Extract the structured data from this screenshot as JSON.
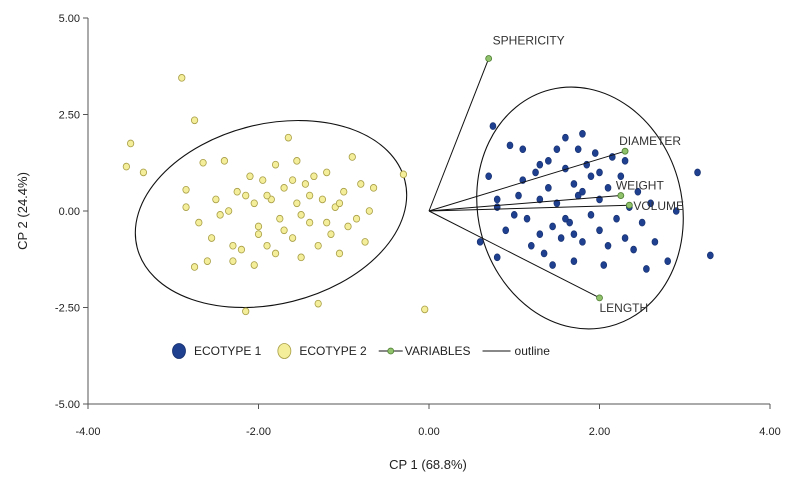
{
  "chart_data": {
    "type": "scatter",
    "title": "",
    "xlabel": "CP 1 (68.8%)",
    "ylabel": "CP 2 (24.4%)",
    "xlim": [
      -4.0,
      4.0
    ],
    "ylim": [
      -5.0,
      5.0
    ],
    "x_ticks": [
      "-4.00",
      "-2.00",
      "0.00",
      "2.00",
      "4.00"
    ],
    "y_ticks": [
      "5.00",
      "2.50",
      "0.00",
      "-2.50",
      "-5.00"
    ],
    "grid": false,
    "legend_position": "bottom-left",
    "colors": {
      "ecotype1_fill": "#1f3f8f",
      "ecotype1_stroke": "#16306e",
      "ecotype2_fill": "#f4ee9a",
      "ecotype2_stroke": "#a89e45",
      "variable_fill": "#8fc26a",
      "variable_stroke": "#4e7d32",
      "line": "#111111"
    },
    "series": [
      {
        "name": "ECOTYPE 1",
        "points": [
          [
            0.6,
            -0.8
          ],
          [
            0.7,
            0.9
          ],
          [
            0.8,
            -1.2
          ],
          [
            0.8,
            0.3
          ],
          [
            0.8,
            0.1
          ],
          [
            0.75,
            2.2
          ],
          [
            0.9,
            -0.5
          ],
          [
            0.95,
            1.7
          ],
          [
            1.0,
            -0.1
          ],
          [
            1.05,
            0.4
          ],
          [
            1.1,
            1.6
          ],
          [
            1.1,
            0.8
          ],
          [
            1.15,
            -0.2
          ],
          [
            1.2,
            -0.9
          ],
          [
            1.25,
            1.0
          ],
          [
            1.3,
            0.3
          ],
          [
            1.3,
            -0.6
          ],
          [
            1.35,
            -1.1
          ],
          [
            1.4,
            1.3
          ],
          [
            1.4,
            0.6
          ],
          [
            1.45,
            -0.4
          ],
          [
            1.5,
            1.6
          ],
          [
            1.5,
            0.2
          ],
          [
            1.55,
            -0.7
          ],
          [
            1.6,
            1.9
          ],
          [
            1.6,
            1.1
          ],
          [
            1.65,
            -0.3
          ],
          [
            1.7,
            0.7
          ],
          [
            1.7,
            -1.3
          ],
          [
            1.75,
            1.6
          ],
          [
            1.75,
            0.4
          ],
          [
            1.8,
            2.0
          ],
          [
            1.8,
            -0.8
          ],
          [
            1.85,
            1.2
          ],
          [
            1.9,
            -0.1
          ],
          [
            1.9,
            0.9
          ],
          [
            1.95,
            1.5
          ],
          [
            2.0,
            0.3
          ],
          [
            2.0,
            -0.5
          ],
          [
            2.05,
            -1.4
          ],
          [
            2.1,
            0.6
          ],
          [
            2.1,
            -0.9
          ],
          [
            2.15,
            1.4
          ],
          [
            2.2,
            -0.2
          ],
          [
            2.25,
            0.9
          ],
          [
            2.3,
            -0.7
          ],
          [
            2.3,
            1.3
          ],
          [
            2.35,
            0.1
          ],
          [
            2.4,
            -1.0
          ],
          [
            2.45,
            0.5
          ],
          [
            2.5,
            -0.3
          ],
          [
            2.55,
            -1.5
          ],
          [
            2.6,
            0.2
          ],
          [
            2.65,
            -0.8
          ],
          [
            2.8,
            -1.3
          ],
          [
            2.9,
            0.0
          ],
          [
            3.15,
            1.0
          ],
          [
            3.3,
            -1.15
          ],
          [
            1.45,
            -1.4
          ],
          [
            1.6,
            -0.2
          ],
          [
            1.8,
            0.5
          ],
          [
            2.0,
            1.0
          ],
          [
            1.7,
            -0.6
          ],
          [
            1.3,
            1.2
          ]
        ]
      },
      {
        "name": "ECOTYPE 2",
        "points": [
          [
            -3.55,
            1.15
          ],
          [
            -3.5,
            1.75
          ],
          [
            -3.35,
            1.0
          ],
          [
            -2.9,
            3.45
          ],
          [
            -2.85,
            0.55
          ],
          [
            -2.85,
            0.1
          ],
          [
            -2.75,
            2.35
          ],
          [
            -2.75,
            -1.45
          ],
          [
            -2.7,
            -0.3
          ],
          [
            -2.65,
            1.25
          ],
          [
            -2.6,
            -1.3
          ],
          [
            -2.55,
            -0.7
          ],
          [
            -2.5,
            0.3
          ],
          [
            -2.45,
            -0.1
          ],
          [
            -2.4,
            1.3
          ],
          [
            -2.35,
            0.0
          ],
          [
            -2.3,
            -0.9
          ],
          [
            -2.25,
            0.5
          ],
          [
            -2.2,
            -1.0
          ],
          [
            -2.15,
            -2.6
          ],
          [
            -2.1,
            0.9
          ],
          [
            -2.05,
            0.2
          ],
          [
            -2.0,
            -0.4
          ],
          [
            -1.95,
            0.8
          ],
          [
            -1.9,
            -0.9
          ],
          [
            -1.85,
            0.3
          ],
          [
            -1.8,
            1.2
          ],
          [
            -1.75,
            -0.2
          ],
          [
            -1.7,
            0.6
          ],
          [
            -1.65,
            1.9
          ],
          [
            -1.6,
            -0.7
          ],
          [
            -1.55,
            0.2
          ],
          [
            -1.5,
            -1.2
          ],
          [
            -1.45,
            0.7
          ],
          [
            -1.4,
            -0.3
          ],
          [
            -1.35,
            0.9
          ],
          [
            -1.3,
            -0.9
          ],
          [
            -1.25,
            0.3
          ],
          [
            -1.2,
            1.0
          ],
          [
            -1.15,
            -0.6
          ],
          [
            -1.1,
            0.1
          ],
          [
            -1.05,
            -1.1
          ],
          [
            -1.0,
            0.5
          ],
          [
            -0.95,
            -0.4
          ],
          [
            -0.9,
            1.4
          ],
          [
            -0.85,
            -0.2
          ],
          [
            -0.8,
            0.7
          ],
          [
            -0.75,
            -0.8
          ],
          [
            -0.7,
            0.0
          ],
          [
            -0.65,
            0.6
          ],
          [
            -2.0,
            -0.6
          ],
          [
            -1.9,
            0.4
          ],
          [
            -1.7,
            -0.5
          ],
          [
            -1.6,
            0.8
          ],
          [
            -1.5,
            -0.1
          ],
          [
            -1.4,
            0.4
          ],
          [
            -1.3,
            -2.4
          ],
          [
            -0.3,
            0.95
          ],
          [
            -0.05,
            -2.55
          ],
          [
            -2.15,
            0.4
          ],
          [
            -1.8,
            -1.1
          ],
          [
            -1.2,
            -0.3
          ],
          [
            -2.3,
            -1.3
          ],
          [
            -1.05,
            0.2
          ],
          [
            -1.55,
            1.3
          ],
          [
            -2.05,
            -1.4
          ]
        ]
      },
      {
        "name": "VARIABLES",
        "points": [
          {
            "label": "SPHERICITY",
            "x": 0.7,
            "y": 3.95
          },
          {
            "label": "DIAMETER",
            "x": 2.3,
            "y": 1.55
          },
          {
            "label": "WEIGHT",
            "x": 2.25,
            "y": 0.4
          },
          {
            "label": "VOLUME",
            "x": 2.35,
            "y": 0.15
          },
          {
            "label": "LENGTH",
            "x": 2.0,
            "y": -2.25
          }
        ]
      }
    ],
    "legend": [
      {
        "label": "ECOTYPE 1",
        "kind": "ecotype1"
      },
      {
        "label": "ECOTYPE 2",
        "kind": "ecotype2"
      },
      {
        "label": "VARIABLES",
        "kind": "variable"
      },
      {
        "label": "outline",
        "kind": "outline"
      }
    ]
  }
}
